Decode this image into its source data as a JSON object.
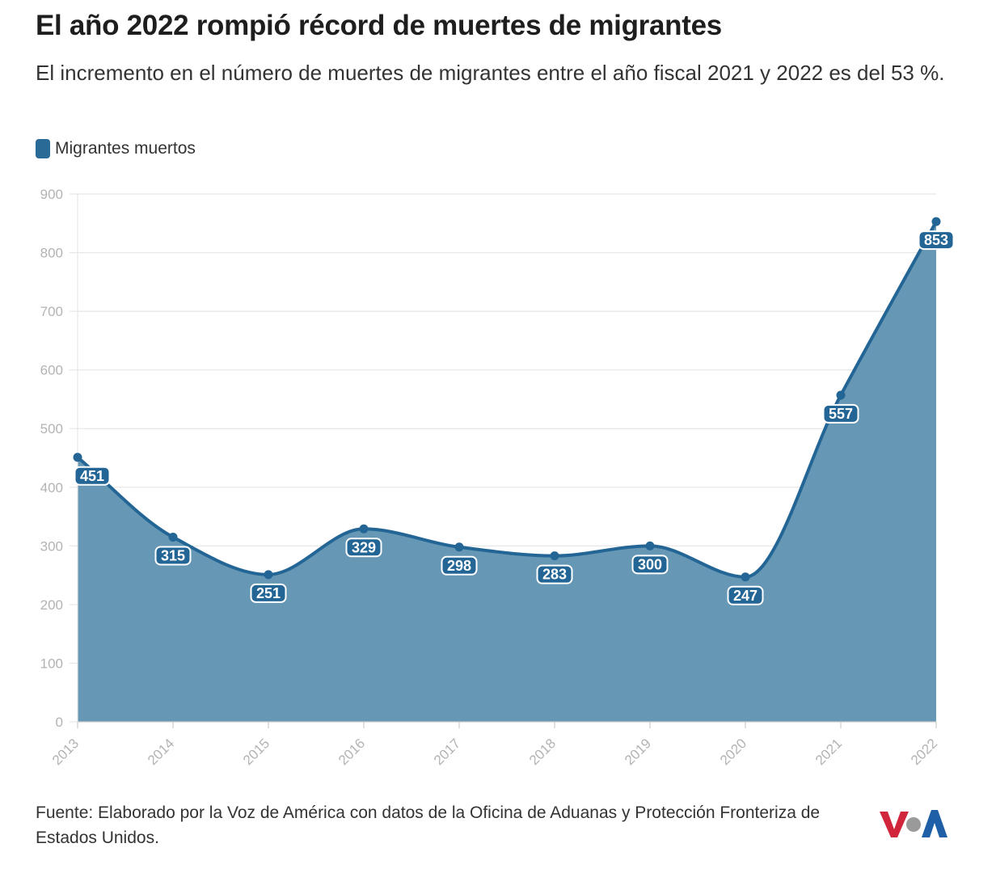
{
  "header": {
    "title": "El año 2022 rompió récord de muertes de migrantes",
    "subtitle": "El incremento en el número de muertes de migrantes entre el año fiscal 2021 y 2022 es del 53 %."
  },
  "legend": {
    "label": "Migrantes muertos",
    "color": "#2a6a96"
  },
  "colors": {
    "line": "#236594",
    "area": "#6697b5",
    "grid": "#e6e6e6",
    "axis_text": "#b3b3b3"
  },
  "chart_data": {
    "type": "area",
    "title": "El año 2022 rompió récord de muertes de migrantes",
    "subtitle": "El incremento en el número de muertes de migrantes entre el año fiscal 2021 y 2022 es del 53 %.",
    "categories": [
      "2013",
      "2014",
      "2015",
      "2016",
      "2017",
      "2018",
      "2019",
      "2020",
      "2021",
      "2022"
    ],
    "series": [
      {
        "name": "Migrantes muertos",
        "values": [
          451,
          315,
          251,
          329,
          298,
          283,
          300,
          247,
          557,
          853
        ]
      }
    ],
    "yticks": [
      0,
      100,
      200,
      300,
      400,
      500,
      600,
      700,
      800,
      900
    ],
    "ylim": [
      0,
      900
    ],
    "xlabel": "",
    "ylabel": "",
    "grid": true,
    "legend_position": "top-left",
    "data_labels": true
  },
  "footer": {
    "source": "Fuente: Elaborado por la Voz de América con datos de la Oficina de Aduanas y Protección Fronteriza de Estados Unidos."
  },
  "logo": {
    "text": "VOA",
    "colors": [
      "#d0253a",
      "#9a9a9a",
      "#1e5fa8"
    ]
  }
}
